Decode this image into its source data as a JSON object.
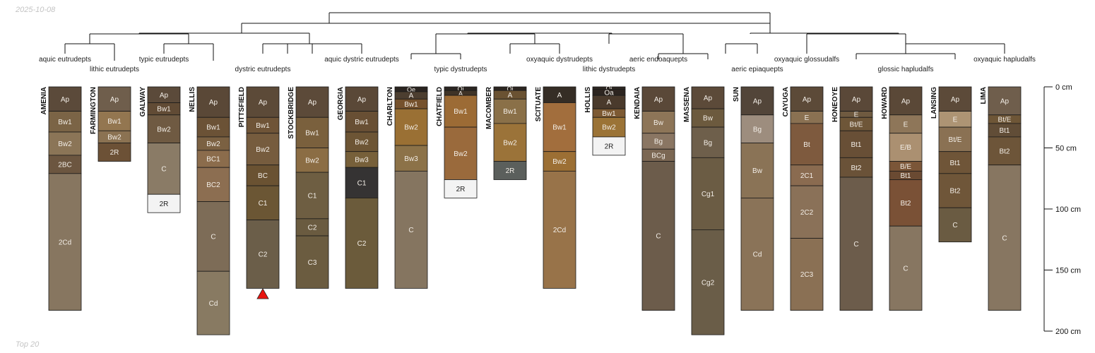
{
  "date": "2025-10-08",
  "footer": "Top 20",
  "depth_axis": {
    "unit": "cm",
    "max_depth": 200,
    "ticks": [
      {
        "depth": 0,
        "label": "0 cm"
      },
      {
        "depth": 50,
        "label": "50 cm"
      },
      {
        "depth": 100,
        "label": "100 cm"
      },
      {
        "depth": 150,
        "label": "150 cm"
      },
      {
        "depth": 200,
        "label": "200 cm"
      }
    ]
  },
  "group_labels": [
    {
      "text": "aquic eutrudepts",
      "profile": 0,
      "row": 0
    },
    {
      "text": "lithic eutrudepts",
      "profile": 1,
      "row": 1
    },
    {
      "text": "typic eutrudepts",
      "profile": 2,
      "row": 0
    },
    {
      "text": "dystric eutrudepts",
      "profile": 4,
      "row": 1
    },
    {
      "text": "aquic dystric eutrudepts",
      "profile": 6,
      "row": 0
    },
    {
      "text": "typic dystrudepts",
      "profile": 8,
      "row": 1
    },
    {
      "text": "oxyaquic dystrudepts",
      "profile": 10,
      "row": 0
    },
    {
      "text": "lithic dystrudepts",
      "profile": 11,
      "row": 1
    },
    {
      "text": "aeric endoaquepts",
      "profile": 12,
      "row": 0
    },
    {
      "text": "aeric epiaquepts",
      "profile": 14,
      "row": 1
    },
    {
      "text": "oxyaquic glossudalfs",
      "profile": 15,
      "row": 0
    },
    {
      "text": "glossic hapludalfs",
      "profile": 17,
      "row": 1
    },
    {
      "text": "oxyaquic hapludalfs",
      "profile": 19,
      "row": 0
    }
  ],
  "marker": {
    "profile": 4,
    "depth": 170,
    "color": "#e8140f"
  },
  "profiles": [
    {
      "name": "AMENIA",
      "horizons": [
        {
          "name": "Ap",
          "top": 0,
          "bottom": 20,
          "color": "#5b4a3a"
        },
        {
          "name": "Bw1",
          "top": 20,
          "bottom": 37,
          "color": "#7b6446"
        },
        {
          "name": "Bw2",
          "top": 37,
          "bottom": 56,
          "color": "#8b7557"
        },
        {
          "name": "2BC",
          "top": 56,
          "bottom": 71,
          "color": "#6c5640"
        },
        {
          "name": "2Cd",
          "top": 71,
          "bottom": 183,
          "color": "#877660"
        }
      ]
    },
    {
      "name": "FARMINGTON",
      "horizons": [
        {
          "name": "Ap",
          "top": 0,
          "bottom": 20,
          "color": "#6f5e4c"
        },
        {
          "name": "Bw1",
          "top": 20,
          "bottom": 36,
          "color": "#937650"
        },
        {
          "name": "Bw2",
          "top": 36,
          "bottom": 46,
          "color": "#8b7252"
        },
        {
          "name": "2R",
          "top": 46,
          "bottom": 61,
          "color": "#6c5136"
        }
      ]
    },
    {
      "name": "GALWAY",
      "horizons": [
        {
          "name": "Ap",
          "top": 0,
          "bottom": 13,
          "color": "#5b4a3a"
        },
        {
          "name": "Bw1",
          "top": 13,
          "bottom": 23,
          "color": "#614b35"
        },
        {
          "name": "Bw2",
          "top": 23,
          "bottom": 46,
          "color": "#6f5a42"
        },
        {
          "name": "C",
          "top": 46,
          "bottom": 88,
          "color": "#8a7b66"
        },
        {
          "name": "2R",
          "top": 88,
          "bottom": 103,
          "color": "#f3f3f3"
        }
      ]
    },
    {
      "name": "NELLIS",
      "horizons": [
        {
          "name": "Ap",
          "top": 0,
          "bottom": 25,
          "color": "#5a4837"
        },
        {
          "name": "Bw1",
          "top": 25,
          "bottom": 41,
          "color": "#6b5236"
        },
        {
          "name": "Bw2",
          "top": 41,
          "bottom": 52,
          "color": "#7b6142"
        },
        {
          "name": "BC1",
          "top": 52,
          "bottom": 66,
          "color": "#8b6c4c"
        },
        {
          "name": "BC2",
          "top": 66,
          "bottom": 94,
          "color": "#8c6e51"
        },
        {
          "name": "C",
          "top": 94,
          "bottom": 151,
          "color": "#7d6c57"
        },
        {
          "name": "Cd",
          "top": 151,
          "bottom": 203,
          "color": "#887a62"
        }
      ]
    },
    {
      "name": "PITTSFIELD",
      "horizons": [
        {
          "name": "Ap",
          "top": 0,
          "bottom": 25,
          "color": "#5c4a38"
        },
        {
          "name": "Bw1",
          "top": 25,
          "bottom": 38,
          "color": "#6f5437"
        },
        {
          "name": "Bw2",
          "top": 38,
          "bottom": 64,
          "color": "#765c3e"
        },
        {
          "name": "BC",
          "top": 64,
          "bottom": 81,
          "color": "#6a5232"
        },
        {
          "name": "C1",
          "top": 81,
          "bottom": 109,
          "color": "#6b5634"
        },
        {
          "name": "C2",
          "top": 109,
          "bottom": 165,
          "color": "#6b5e49"
        }
      ]
    },
    {
      "name": "STOCKBRIDGE",
      "horizons": [
        {
          "name": "Ap",
          "top": 0,
          "bottom": 25,
          "color": "#5c4a39"
        },
        {
          "name": "Bw1",
          "top": 25,
          "bottom": 50,
          "color": "#7a603d"
        },
        {
          "name": "Bw2",
          "top": 50,
          "bottom": 70,
          "color": "#8b6d44"
        },
        {
          "name": "C1",
          "top": 70,
          "bottom": 108,
          "color": "#6e5e42"
        },
        {
          "name": "C2",
          "top": 108,
          "bottom": 122,
          "color": "#6a5b40"
        },
        {
          "name": "C3",
          "top": 122,
          "bottom": 165,
          "color": "#6b5c40"
        }
      ]
    },
    {
      "name": "GEORGIA",
      "horizons": [
        {
          "name": "Ap",
          "top": 0,
          "bottom": 20,
          "color": "#5a4837"
        },
        {
          "name": "Bw1",
          "top": 20,
          "bottom": 37,
          "color": "#684f34"
        },
        {
          "name": "Bw2",
          "top": 37,
          "bottom": 53,
          "color": "#6d5535"
        },
        {
          "name": "Bw3",
          "top": 53,
          "bottom": 66,
          "color": "#77603a"
        },
        {
          "name": "C1",
          "top": 66,
          "bottom": 91,
          "color": "#353333"
        },
        {
          "name": "C2",
          "top": 91,
          "bottom": 165,
          "color": "#6b5b3b"
        }
      ]
    },
    {
      "name": "CHARLTON",
      "horizons": [
        {
          "name": "Oe",
          "top": 0,
          "bottom": 4,
          "color": "#2a2420"
        },
        {
          "name": "A",
          "top": 4,
          "bottom": 10,
          "color": "#4c3e30"
        },
        {
          "name": "Bw1",
          "top": 10,
          "bottom": 18,
          "color": "#75512c"
        },
        {
          "name": "Bw2",
          "top": 18,
          "bottom": 48,
          "color": "#9a7034"
        },
        {
          "name": "Bw3",
          "top": 48,
          "bottom": 69,
          "color": "#8c7248"
        },
        {
          "name": "C",
          "top": 69,
          "bottom": 165,
          "color": "#857560"
        }
      ]
    },
    {
      "name": "CHATFIELD",
      "horizons": [
        {
          "name": "Oi",
          "top": 0,
          "bottom": 3,
          "color": "#2b2622"
        },
        {
          "name": "A",
          "top": 3,
          "bottom": 7,
          "color": "#3f3327"
        },
        {
          "name": "Bw1",
          "top": 7,
          "bottom": 33,
          "color": "#9c6b35"
        },
        {
          "name": "Bw2",
          "top": 33,
          "bottom": 76,
          "color": "#9a6a3c"
        },
        {
          "name": "2R",
          "top": 76,
          "bottom": 91,
          "color": "#f3f3f3"
        }
      ]
    },
    {
      "name": "MACOMBER",
      "horizons": [
        {
          "name": "Oi",
          "top": 0,
          "bottom": 3,
          "color": "#2c2621"
        },
        {
          "name": "A",
          "top": 3,
          "bottom": 10,
          "color": "#6a5232"
        },
        {
          "name": "Bw1",
          "top": 10,
          "bottom": 30,
          "color": "#8a7048"
        },
        {
          "name": "Bw2",
          "top": 30,
          "bottom": 61,
          "color": "#9b7339"
        },
        {
          "name": "2R",
          "top": 61,
          "bottom": 76,
          "color": "#5b5f5c"
        }
      ]
    },
    {
      "name": "SCITUATE",
      "horizons": [
        {
          "name": "A",
          "top": 0,
          "bottom": 13,
          "color": "#352d25"
        },
        {
          "name": "Bw1",
          "top": 13,
          "bottom": 53,
          "color": "#a26e3d"
        },
        {
          "name": "Bw2",
          "top": 53,
          "bottom": 69,
          "color": "#9c6f34"
        },
        {
          "name": "2Cd",
          "top": 69,
          "bottom": 165,
          "color": "#987349"
        }
      ]
    },
    {
      "name": "HOLLIS",
      "horizons": [
        {
          "name": "Oi",
          "top": 0,
          "bottom": 2,
          "color": "#2c2621"
        },
        {
          "name": "Oa",
          "top": 2,
          "bottom": 7,
          "color": "#2d2520"
        },
        {
          "name": "A",
          "top": 7,
          "bottom": 18,
          "color": "#4a3a2c"
        },
        {
          "name": "Bw1",
          "top": 18,
          "bottom": 25,
          "color": "#7d5a33"
        },
        {
          "name": "Bw2",
          "top": 25,
          "bottom": 41,
          "color": "#9b7336"
        },
        {
          "name": "2R",
          "top": 41,
          "bottom": 56,
          "color": "#f3f3f3"
        }
      ]
    },
    {
      "name": "KENDAIA",
      "horizons": [
        {
          "name": "Ap",
          "top": 0,
          "bottom": 20,
          "color": "#5a4838"
        },
        {
          "name": "Bw",
          "top": 20,
          "bottom": 38,
          "color": "#8d7558"
        },
        {
          "name": "Bg",
          "top": 38,
          "bottom": 51,
          "color": "#8a7663"
        },
        {
          "name": "BCg",
          "top": 51,
          "bottom": 61,
          "color": "#7b6753"
        },
        {
          "name": "C",
          "top": 61,
          "bottom": 183,
          "color": "#6c5c4b"
        }
      ]
    },
    {
      "name": "MASSENA",
      "horizons": [
        {
          "name": "Ap",
          "top": 0,
          "bottom": 18,
          "color": "#5c4a39"
        },
        {
          "name": "Bw",
          "top": 18,
          "bottom": 33,
          "color": "#6c5a3e"
        },
        {
          "name": "Bg",
          "top": 33,
          "bottom": 58,
          "color": "#6e5f4b"
        },
        {
          "name": "Cg1",
          "top": 58,
          "bottom": 117,
          "color": "#6b5c44"
        },
        {
          "name": "Cg2",
          "top": 117,
          "bottom": 203,
          "color": "#6a5d48"
        }
      ]
    },
    {
      "name": "SUN",
      "horizons": [
        {
          "name": "Ap",
          "top": 0,
          "bottom": 23,
          "color": "#524539"
        },
        {
          "name": "Bg",
          "top": 23,
          "bottom": 46,
          "color": "#9d8d7e"
        },
        {
          "name": "Bw",
          "top": 46,
          "bottom": 91,
          "color": "#8a7356"
        },
        {
          "name": "Cd",
          "top": 91,
          "bottom": 183,
          "color": "#8a7358"
        }
      ]
    },
    {
      "name": "CAYUGA",
      "horizons": [
        {
          "name": "Ap",
          "top": 0,
          "bottom": 20,
          "color": "#5c4a38"
        },
        {
          "name": "E",
          "top": 20,
          "bottom": 30,
          "color": "#8a7152"
        },
        {
          "name": "Bt",
          "top": 30,
          "bottom": 64,
          "color": "#7e5a3e"
        },
        {
          "name": "2C1",
          "top": 64,
          "bottom": 81,
          "color": "#8a6b50"
        },
        {
          "name": "2C2",
          "top": 81,
          "bottom": 124,
          "color": "#8a7158"
        },
        {
          "name": "2C3",
          "top": 124,
          "bottom": 183,
          "color": "#8a7054"
        }
      ]
    },
    {
      "name": "HONEOYE",
      "horizons": [
        {
          "name": "Ap",
          "top": 0,
          "bottom": 20,
          "color": "#5a4838"
        },
        {
          "name": "E",
          "top": 20,
          "bottom": 25,
          "color": "#6f5a40"
        },
        {
          "name": "Bt/E",
          "top": 25,
          "bottom": 36,
          "color": "#6e5638"
        },
        {
          "name": "Bt1",
          "top": 36,
          "bottom": 58,
          "color": "#684f36"
        },
        {
          "name": "Bt2",
          "top": 58,
          "bottom": 74,
          "color": "#6a5238"
        },
        {
          "name": "C",
          "top": 74,
          "bottom": 183,
          "color": "#6c5c4b"
        }
      ]
    },
    {
      "name": "HOWARD",
      "horizons": [
        {
          "name": "Ap",
          "top": 0,
          "bottom": 23,
          "color": "#5a4837"
        },
        {
          "name": "E",
          "top": 23,
          "bottom": 38,
          "color": "#8e7659"
        },
        {
          "name": "E/B",
          "top": 38,
          "bottom": 61,
          "color": "#ab9071"
        },
        {
          "name": "B/E",
          "top": 61,
          "bottom": 69,
          "color": "#7b5638"
        },
        {
          "name": "Bt1",
          "top": 69,
          "bottom": 76,
          "color": "#6a4a32"
        },
        {
          "name": "Bt2",
          "top": 76,
          "bottom": 114,
          "color": "#7a5136"
        },
        {
          "name": "C",
          "top": 114,
          "bottom": 183,
          "color": "#877661"
        }
      ]
    },
    {
      "name": "LANSING",
      "horizons": [
        {
          "name": "Ap",
          "top": 0,
          "bottom": 20,
          "color": "#5c4a39"
        },
        {
          "name": "E",
          "top": 20,
          "bottom": 33,
          "color": "#ad9474"
        },
        {
          "name": "Bt/E",
          "top": 33,
          "bottom": 53,
          "color": "#8a7153"
        },
        {
          "name": "Bt1",
          "top": 53,
          "bottom": 71,
          "color": "#6f5538"
        },
        {
          "name": "Bt2",
          "top": 71,
          "bottom": 99,
          "color": "#6f5639"
        },
        {
          "name": "C",
          "top": 99,
          "bottom": 127,
          "color": "#6a5b42"
        }
      ]
    },
    {
      "name": "LIMA",
      "horizons": [
        {
          "name": "Ap",
          "top": 0,
          "bottom": 23,
          "color": "#6f5e4c"
        },
        {
          "name": "Bt/E",
          "top": 23,
          "bottom": 30,
          "color": "#6e5637"
        },
        {
          "name": "Bt1",
          "top": 30,
          "bottom": 41,
          "color": "#614d37"
        },
        {
          "name": "Bt2",
          "top": 41,
          "bottom": 64,
          "color": "#6d5539"
        },
        {
          "name": "C",
          "top": 64,
          "bottom": 183,
          "color": "#877661"
        }
      ]
    }
  ]
}
